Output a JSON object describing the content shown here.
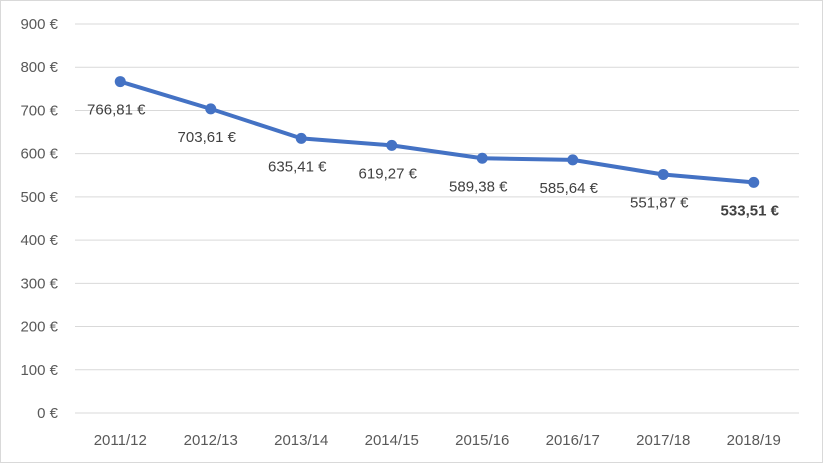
{
  "chart_data": {
    "type": "line",
    "title": "",
    "xlabel": "",
    "ylabel": "",
    "categories": [
      "2011/12",
      "2012/13",
      "2013/14",
      "2014/15",
      "2015/16",
      "2016/17",
      "2017/18",
      "2018/19"
    ],
    "series": [
      {
        "values": [
          766.81,
          703.61,
          635.41,
          619.27,
          589.38,
          585.64,
          551.87,
          533.51
        ],
        "data_labels": [
          "766,81 €",
          "703,61 €",
          "635,41 €",
          "619,27 €",
          "589,38 €",
          "585,64 €",
          "551,87 €",
          "533,51 €"
        ],
        "bold_labels": [
          false,
          false,
          false,
          false,
          false,
          false,
          false,
          true
        ],
        "color": "#4472c4"
      }
    ],
    "ylim": [
      0,
      900
    ],
    "yticks": [
      0,
      100,
      200,
      300,
      400,
      500,
      600,
      700,
      800,
      900
    ],
    "ytick_labels": [
      "0 €",
      "100 €",
      "200 €",
      "300 €",
      "400 €",
      "500 €",
      "600 €",
      "700 €",
      "800 €",
      "900 €"
    ],
    "grid": true,
    "gridline_color": "#d9d9d9",
    "legend": "none"
  }
}
